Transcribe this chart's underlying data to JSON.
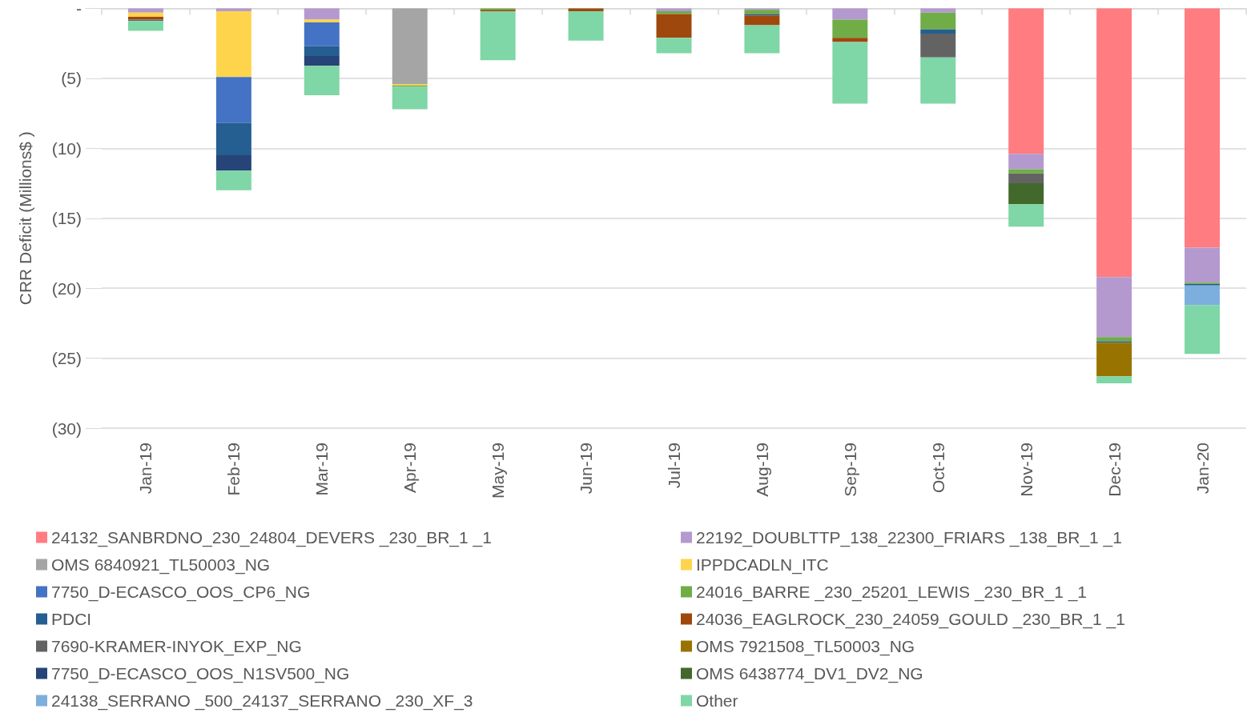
{
  "chart_data": {
    "type": "bar",
    "stacked": true,
    "ylabel": "CRR Deficit (Millions$ )",
    "categories": [
      "Jan-19",
      "Feb-19",
      "Mar-19",
      "Apr-19",
      "May-19",
      "Jun-19",
      "Jul-19",
      "Aug-19",
      "Sep-19",
      "Oct-19",
      "Nov-19",
      "Dec-19",
      "Jan-20"
    ],
    "ylim": [
      -30,
      0
    ],
    "yticks": [
      {
        "value": 0,
        "label": "-"
      },
      {
        "value": -5,
        "label": "(5)"
      },
      {
        "value": -10,
        "label": "(10)"
      },
      {
        "value": -15,
        "label": "(15)"
      },
      {
        "value": -20,
        "label": "(20)"
      },
      {
        "value": -25,
        "label": "(25)"
      },
      {
        "value": -30,
        "label": "(30)"
      }
    ],
    "grid": "y",
    "legend": "bottom",
    "series": [
      {
        "name": "24132_SANBRDNO_230_24804_DEVERS _230_BR_1 _1",
        "color": "#ff7c80",
        "values": [
          null,
          null,
          null,
          null,
          null,
          null,
          null,
          null,
          null,
          null,
          -10.4,
          -19.2,
          -17.1
        ]
      },
      {
        "name": "22192_DOUBLTTP_138_22300_FRIARS _138_BR_1 _1",
        "color": "#b499cf",
        "values": [
          -0.3,
          -0.2,
          -0.8,
          null,
          null,
          null,
          -0.2,
          -0.1,
          -0.8,
          -0.3,
          -1.1,
          -4.3,
          -2.5
        ]
      },
      {
        "name": "OMS 6840921_TL50003_NG",
        "color": "#a5a5a5",
        "values": [
          null,
          null,
          null,
          -5.4,
          null,
          null,
          null,
          null,
          null,
          null,
          null,
          null,
          null
        ]
      },
      {
        "name": "IPPDCADLN_ITC",
        "color": "#ffd44d",
        "values": [
          -0.3,
          -4.7,
          -0.2,
          -0.1,
          null,
          null,
          null,
          null,
          null,
          null,
          null,
          null,
          null
        ]
      },
      {
        "name": "7750_D-ECASCO_OOS_CP6_NG",
        "color": "#4472c4",
        "values": [
          null,
          -3.3,
          -1.7,
          null,
          null,
          null,
          null,
          null,
          null,
          null,
          null,
          null,
          null
        ]
      },
      {
        "name": "24016_BARRE _230_25201_LEWIS _230_BR_1 _1",
        "color": "#70ad47",
        "values": [
          null,
          null,
          null,
          -0.1,
          -0.1,
          null,
          -0.2,
          -0.3,
          -1.3,
          -1.2,
          -0.3,
          -0.3,
          -0.1
        ]
      },
      {
        "name": "PDCI",
        "color": "#255e91",
        "values": [
          null,
          -2.3,
          -0.7,
          null,
          null,
          null,
          null,
          -0.1,
          null,
          -0.3,
          null,
          -0.1,
          -0.1
        ]
      },
      {
        "name": "24036_EAGLROCK_230_24059_GOULD _230_BR_1 _1",
        "color": "#9e480e",
        "values": [
          -0.2,
          null,
          null,
          null,
          -0.1,
          -0.2,
          -1.7,
          -0.7,
          -0.3,
          null,
          null,
          null,
          null
        ]
      },
      {
        "name": "7690-KRAMER-INYOK_EXP_NG",
        "color": "#636363",
        "values": [
          -0.1,
          null,
          null,
          null,
          null,
          null,
          null,
          null,
          null,
          -1.7,
          -0.7,
          null,
          null
        ]
      },
      {
        "name": "OMS 7921508_TL50003_NG",
        "color": "#997300",
        "values": [
          null,
          null,
          null,
          null,
          null,
          null,
          null,
          null,
          null,
          null,
          null,
          -2.4,
          null
        ]
      },
      {
        "name": "7750_D-ECASCO_OOS_N1SV500_NG",
        "color": "#264478",
        "values": [
          null,
          -1.1,
          -0.7,
          null,
          null,
          null,
          null,
          null,
          null,
          null,
          null,
          null,
          null
        ]
      },
      {
        "name": "OMS 6438774_DV1_DV2_NG",
        "color": "#43682b",
        "values": [
          null,
          null,
          null,
          null,
          null,
          null,
          null,
          null,
          null,
          null,
          -1.5,
          null,
          null
        ]
      },
      {
        "name": "24138_SERRANO _500_24137_SERRANO _230_XF_3",
        "color": "#7cafdd",
        "values": [
          null,
          null,
          null,
          null,
          null,
          null,
          null,
          null,
          null,
          null,
          null,
          null,
          -1.4
        ]
      },
      {
        "name": "Other",
        "color": "#7fd6a6",
        "values": [
          -0.7,
          -1.4,
          -2.1,
          -1.6,
          -3.5,
          -2.1,
          -1.1,
          -2.0,
          -4.4,
          -3.3,
          -1.6,
          -0.5,
          -3.5
        ]
      }
    ]
  }
}
